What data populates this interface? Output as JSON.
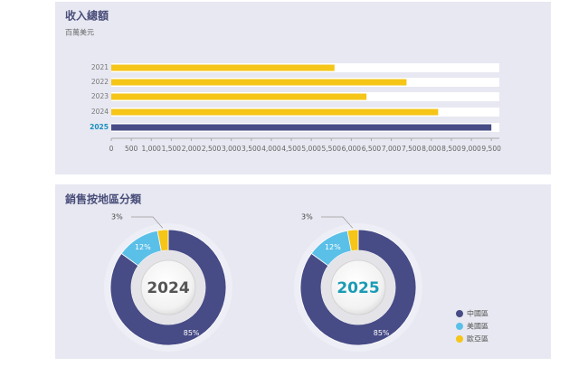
{
  "chart_data": [
    {
      "type": "hbar",
      "title": "收入總額",
      "subtitle": "百萬美元",
      "categories": [
        "2021",
        "2022",
        "2023",
        "2024",
        "2025"
      ],
      "values": [
        5580,
        7380,
        6380,
        8170,
        9500
      ],
      "colors": [
        "#f5c518",
        "#f5c518",
        "#f5c518",
        "#f5c518",
        "#474b86"
      ],
      "category_colors": [
        "#777777",
        "#777777",
        "#777777",
        "#777777",
        "#1a8fc0"
      ],
      "xlim": [
        0,
        9700
      ],
      "xticks": [
        0,
        500,
        {
          "value": 1000,
          "label": "1,000"
        },
        {
          "value": 1500,
          "label": "1,500"
        },
        {
          "value": 2000,
          "label": "2,000"
        },
        {
          "value": 2500,
          "label": "2,500"
        },
        {
          "value": 3000,
          "label": "3,000"
        },
        {
          "value": 3500,
          "label": "3,500"
        },
        {
          "value": 4000,
          "label": "4,000"
        },
        {
          "value": 4500,
          "label": "4,500"
        },
        {
          "value": 5000,
          "label": "5,000"
        },
        {
          "value": 5500,
          "label": "5,500"
        },
        {
          "value": 6000,
          "label": "6,000"
        },
        {
          "value": 6500,
          "label": "6,500"
        },
        {
          "value": 7000,
          "label": "7,000"
        },
        {
          "value": 7500,
          "label": "7,500"
        },
        {
          "value": 8000,
          "label": "8,000"
        },
        {
          "value": 8500,
          "label": "8,500"
        },
        {
          "value": 9000,
          "label": "9,000"
        },
        {
          "value": 9500,
          "label": "9,500"
        }
      ]
    },
    {
      "type": "donut",
      "title": "銷售按地區分類",
      "categories": [
        "中國區",
        "美國區",
        "歐亞區"
      ],
      "colors": [
        "#474b86",
        "#5bc0e8",
        "#f5c518"
      ],
      "series": [
        {
          "name": "2024",
          "color": "#555555",
          "values": [
            85,
            12,
            3
          ],
          "value_labels": [
            "85%",
            "12%",
            "3%"
          ]
        },
        {
          "name": "2025",
          "color": "#1a9bb5",
          "values": [
            85,
            12,
            3
          ],
          "value_labels": [
            "85%",
            "12%",
            "3%"
          ]
        }
      ]
    }
  ]
}
